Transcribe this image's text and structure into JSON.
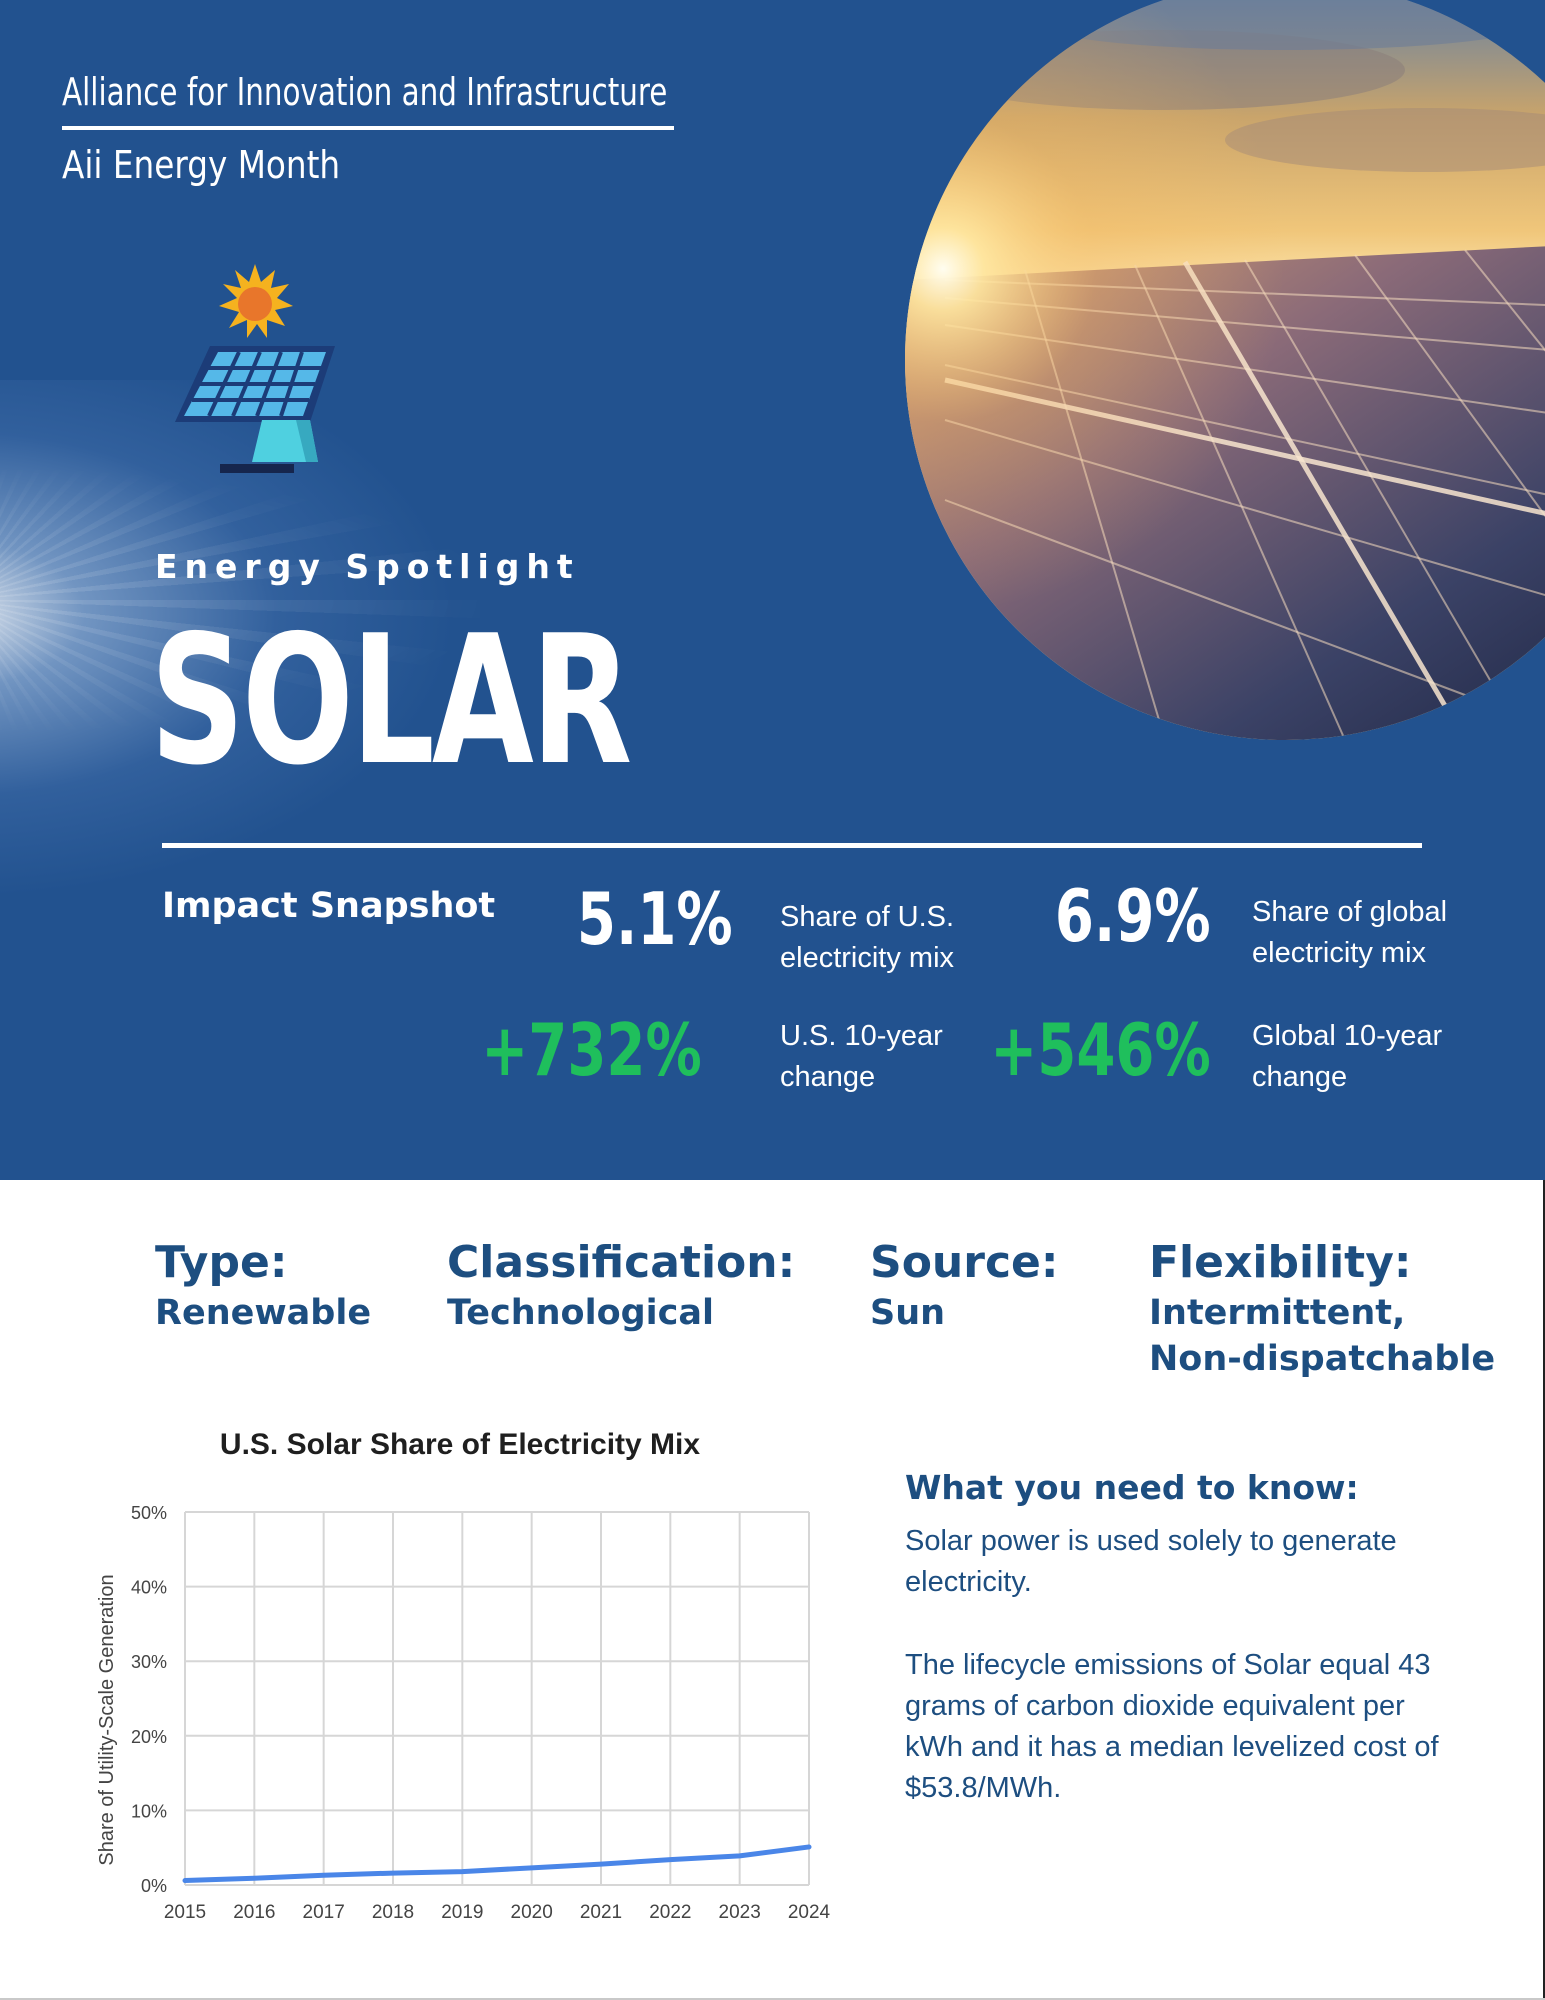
{
  "header": {
    "organization": "Alliance for Innovation and Infrastructure",
    "event": "Aii Energy Month",
    "eyebrow": "Energy Spotlight",
    "title": "SOLAR"
  },
  "colors": {
    "hero_background": "#22528f",
    "accent_green": "#1fbf5c",
    "text_navy": "#1d4e80",
    "chart_line": "#4a86e8"
  },
  "icons": {
    "hero_icon": "solar-panel-sun-icon",
    "hero_photo": "solar-panels-sunset-photo"
  },
  "snapshot": {
    "label": "Impact Snapshot",
    "us_share_value": "5.1%",
    "us_share_desc": "Share of U.S. electricity mix",
    "global_share_value": "6.9%",
    "global_share_desc": "Share of global electricity mix",
    "us_change_value": "+732%",
    "us_change_desc": "U.S. 10-year change",
    "global_change_value": "+546%",
    "global_change_desc": "Global 10-year change"
  },
  "facts": {
    "type_label": "Type:",
    "type_value": "Renewable",
    "classification_label": "Classification:",
    "classification_value": "Technological",
    "source_label": "Source:",
    "source_value": "Sun",
    "flexibility_label": "Flexibility:",
    "flexibility_value_1": "Intermittent,",
    "flexibility_value_2": "Non-dispatchable"
  },
  "know": {
    "heading": "What you need to know:",
    "paragraph_1": "Solar power is used solely to generate electricity.",
    "paragraph_2": "The lifecycle emissions of Solar equal 43 grams of carbon dioxide equivalent per kWh and it has a median levelized cost of $53.8/MWh."
  },
  "chart_data": {
    "type": "line",
    "title": "U.S. Solar Share of Electricity Mix",
    "xlabel": "",
    "ylabel": "Share of Utility-Scale Generation",
    "x": [
      "2015",
      "2016",
      "2017",
      "2018",
      "2019",
      "2020",
      "2021",
      "2022",
      "2023",
      "2024"
    ],
    "series": [
      {
        "values": [
          0.6,
          0.9,
          1.3,
          1.6,
          1.8,
          2.3,
          2.8,
          3.4,
          3.9,
          5.1
        ]
      }
    ],
    "ylim": [
      0,
      50
    ],
    "yticks": [
      0,
      10,
      20,
      30,
      40,
      50
    ],
    "ytick_labels": [
      "0%",
      "10%",
      "20%",
      "30%",
      "40%",
      "50%"
    ],
    "grid": true,
    "legend": "none"
  }
}
